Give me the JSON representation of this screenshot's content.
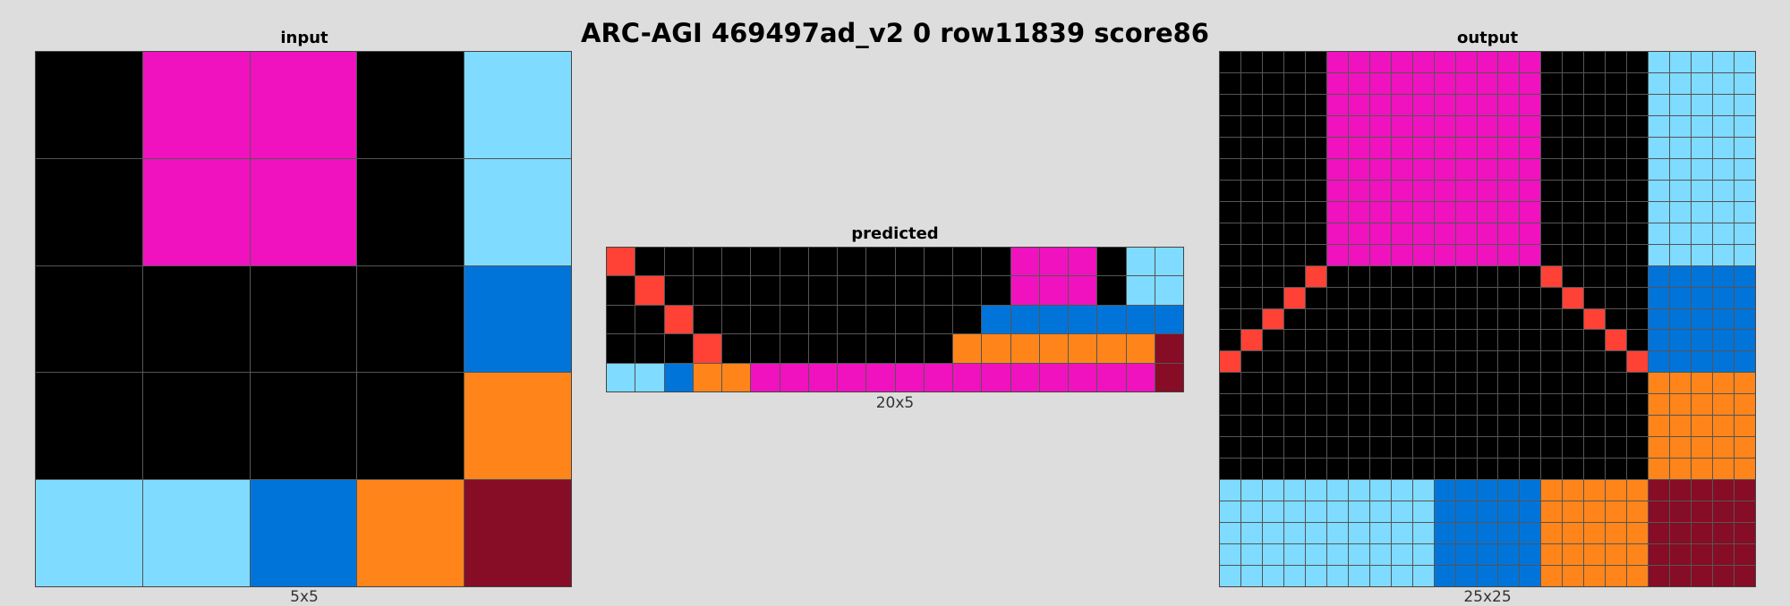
{
  "title": "ARC-AGI 469497ad_v2 0 row11839 score86",
  "palette": {
    "0": "#000000",
    "1": "#0074d9",
    "2": "#ff4136",
    "6": "#f012be",
    "7": "#ff851b",
    "8": "#7fdbff",
    "9": "#870c25"
  },
  "input": {
    "label": "input",
    "dims": "5x5",
    "cells": [
      [
        0,
        6,
        6,
        0,
        8
      ],
      [
        0,
        6,
        6,
        0,
        8
      ],
      [
        0,
        0,
        0,
        0,
        1
      ],
      [
        0,
        0,
        0,
        0,
        7
      ],
      [
        8,
        8,
        1,
        7,
        9
      ]
    ]
  },
  "predicted": {
    "label": "predicted",
    "dims": "20x5",
    "cells": [
      [
        2,
        0,
        0,
        0,
        0,
        0,
        0,
        0,
        0,
        0,
        0,
        0,
        0,
        0,
        6,
        6,
        6,
        0,
        8,
        8
      ],
      [
        0,
        2,
        0,
        0,
        0,
        0,
        0,
        0,
        0,
        0,
        0,
        0,
        0,
        0,
        6,
        6,
        6,
        0,
        8,
        8
      ],
      [
        0,
        0,
        2,
        0,
        0,
        0,
        0,
        0,
        0,
        0,
        0,
        0,
        0,
        1,
        1,
        1,
        1,
        1,
        1,
        1
      ],
      [
        0,
        0,
        0,
        2,
        0,
        0,
        0,
        0,
        0,
        0,
        0,
        0,
        7,
        7,
        7,
        7,
        7,
        7,
        7,
        9
      ],
      [
        8,
        8,
        1,
        7,
        7,
        6,
        6,
        6,
        6,
        6,
        6,
        6,
        6,
        6,
        6,
        6,
        6,
        6,
        6,
        9
      ]
    ]
  },
  "output": {
    "label": "output",
    "dims": "25x25"
  }
}
